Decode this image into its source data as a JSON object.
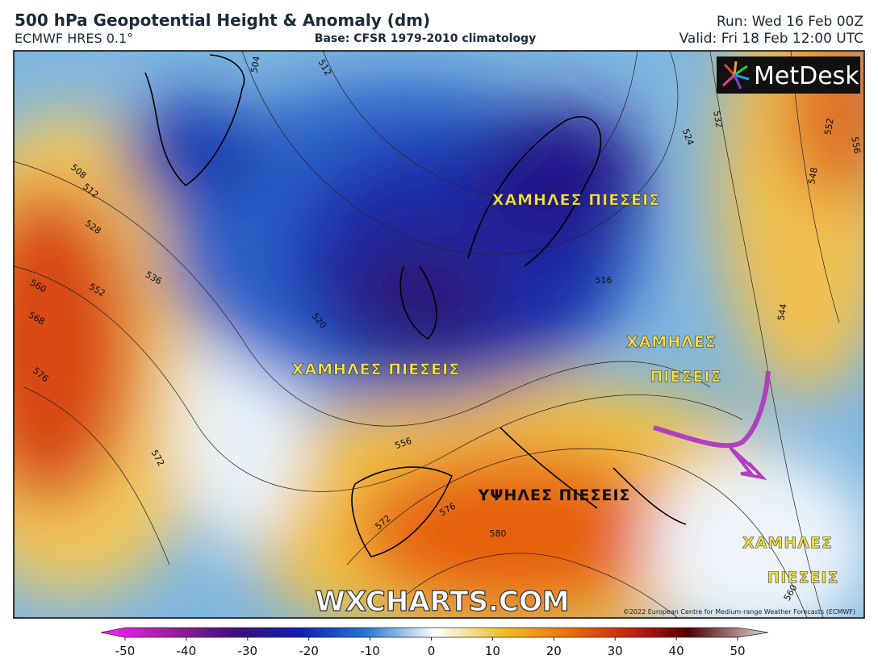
{
  "header": {
    "title": "500 hPa Geopotential Height & Anomaly (dm)",
    "model": "ECMWF HRES 0.1°",
    "base": "Base: CFSR 1979-2010 climatology",
    "run": "Run: Wed 16 Feb 00Z",
    "valid": "Valid: Fri 18 Feb 12:00 UTC"
  },
  "logo": "MetDesk",
  "map": {
    "region_labels": [
      "ΧΑΜΗΛΕΣ ΠΙΕΣΕΙΣ",
      "ΧΑΜΗΛΕΣ ΠΙΕΣΕΙΣ",
      "ΧΑΜΗΛΕΣ",
      "ΠΙΕΣΕΙΣ",
      "ΥΨΗΛΕΣ ΠΙΕΣΕΙΣ",
      "ΧΑΜΗΛΕΣ",
      "ΠΙΕΣΕΙΣ"
    ],
    "contour_labels": [
      504,
      512,
      508,
      512,
      528,
      536,
      552,
      560,
      568,
      576,
      572,
      520,
      516,
      556,
      572,
      576,
      580,
      524,
      532,
      552,
      556,
      548,
      544,
      560
    ],
    "watermark": "WXCHARTS.COM",
    "credit": "©2022 European Centre for Medium-range Weather Forecasts (ECMWF)"
  },
  "colorbar": {
    "range": [
      -50,
      50
    ],
    "ticks": [
      -50,
      -40,
      -30,
      -20,
      -10,
      0,
      10,
      20,
      30,
      40,
      50
    ]
  }
}
